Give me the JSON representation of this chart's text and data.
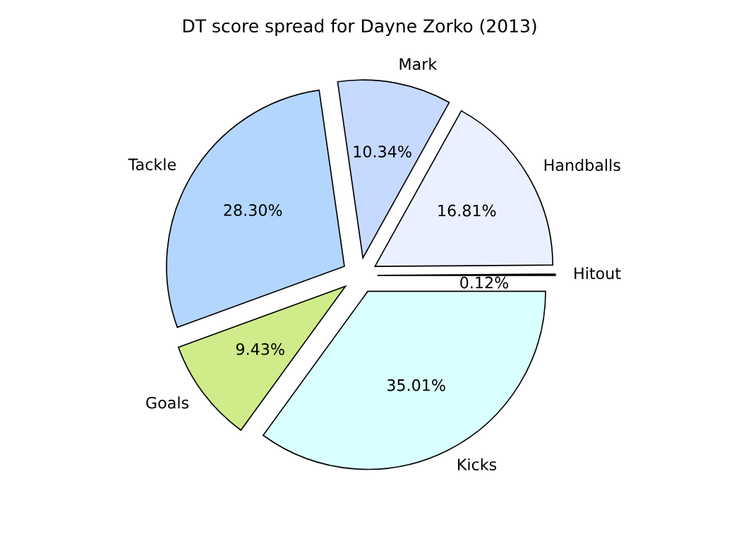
{
  "chart_data": {
    "type": "pie",
    "title": "DT score spread for Dayne Zorko (2013)",
    "categories": [
      "Hitout",
      "Handballs",
      "Mark",
      "Tackle",
      "Goals",
      "Kicks"
    ],
    "values": [
      0.12,
      16.81,
      10.34,
      28.3,
      9.43,
      35.01
    ],
    "value_labels": [
      "0.12%",
      "16.81%",
      "10.34%",
      "28.30%",
      "9.43%",
      "35.01%"
    ],
    "colors": [
      "#ffe0e0",
      "#eaf0ff",
      "#c6d9ff",
      "#b3d6ff",
      "#d0eb8a",
      "#d9ffff"
    ],
    "legend": false
  }
}
